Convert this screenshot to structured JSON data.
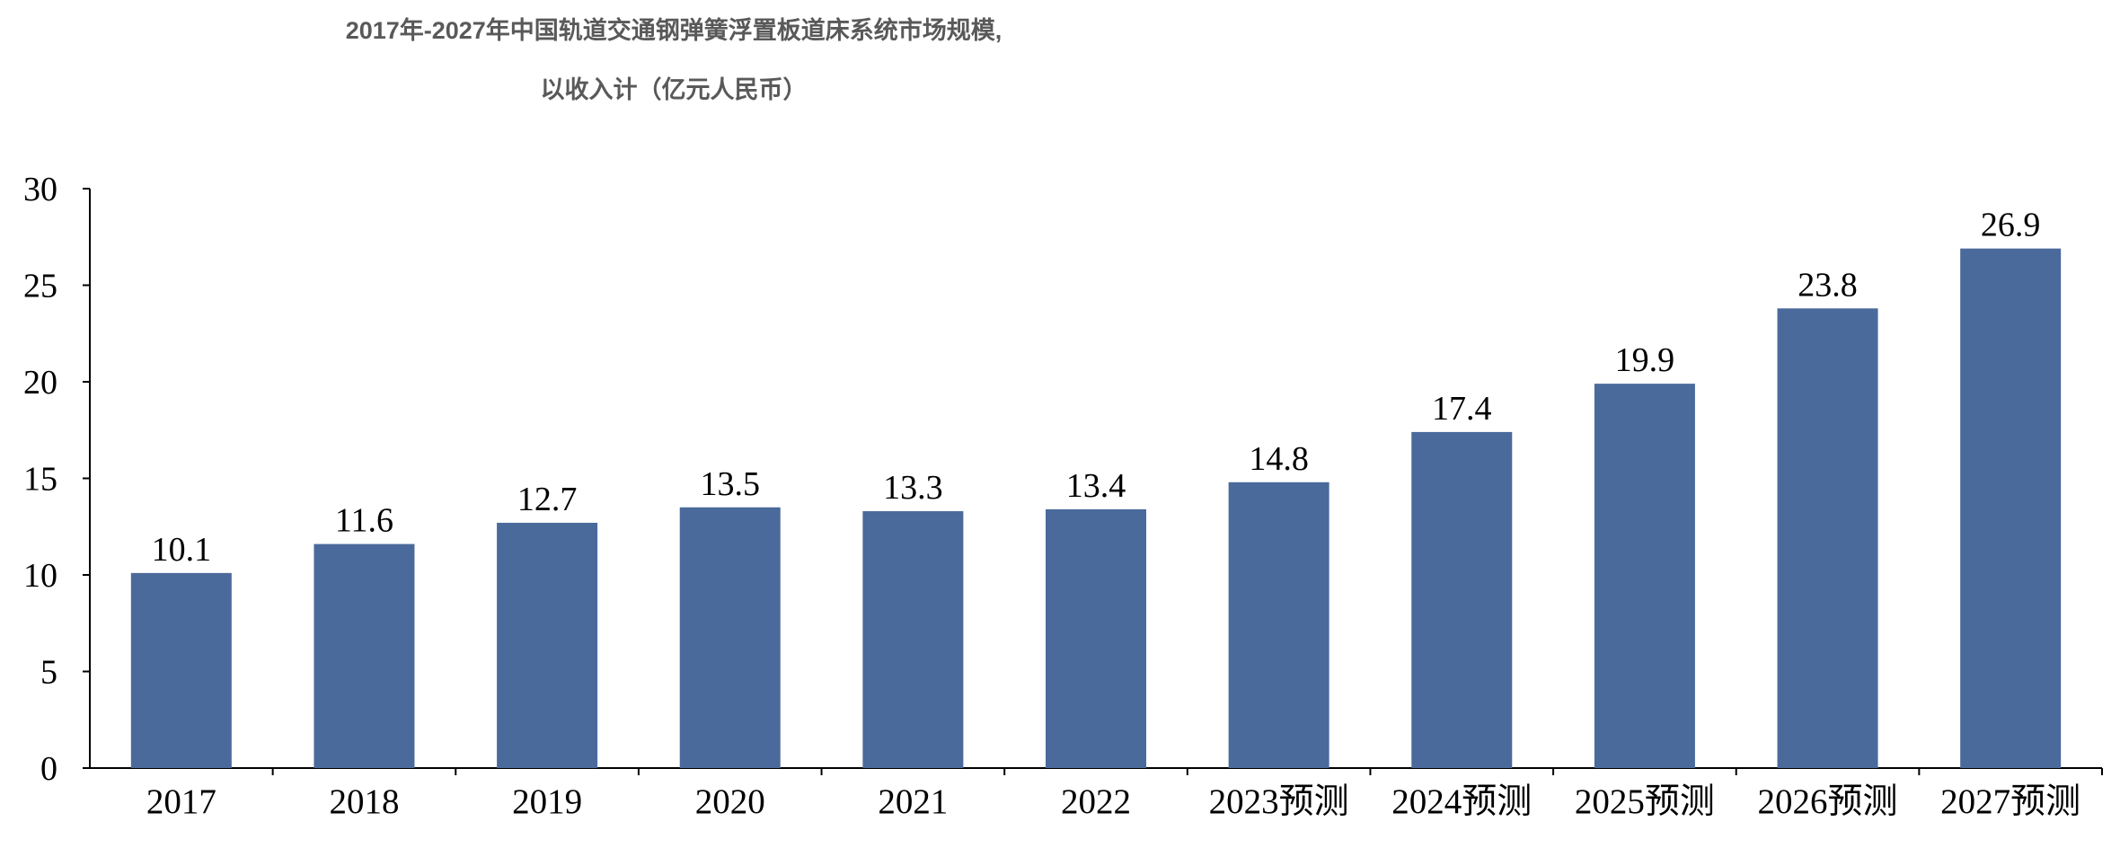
{
  "chart_data": {
    "type": "bar",
    "title": "2017年-2027年中国轨道交通钢弹簧浮置板道床系统市场规模,",
    "subtitle": "以收入计（亿元人民币）",
    "categories": [
      "2017",
      "2018",
      "2019",
      "2020",
      "2021",
      "2022",
      "2023预测",
      "2024预测",
      "2025预测",
      "2026预测",
      "2027预测"
    ],
    "values": [
      10.1,
      11.6,
      12.7,
      13.5,
      13.3,
      13.4,
      14.8,
      17.4,
      19.9,
      23.8,
      26.9
    ],
    "ylim": [
      0,
      30
    ],
    "yticks": [
      0,
      5,
      10,
      15,
      20,
      25,
      30
    ],
    "xlabel": "",
    "ylabel": "",
    "grid": false,
    "bar_color": "#4A6A9B",
    "data_labels": true
  }
}
